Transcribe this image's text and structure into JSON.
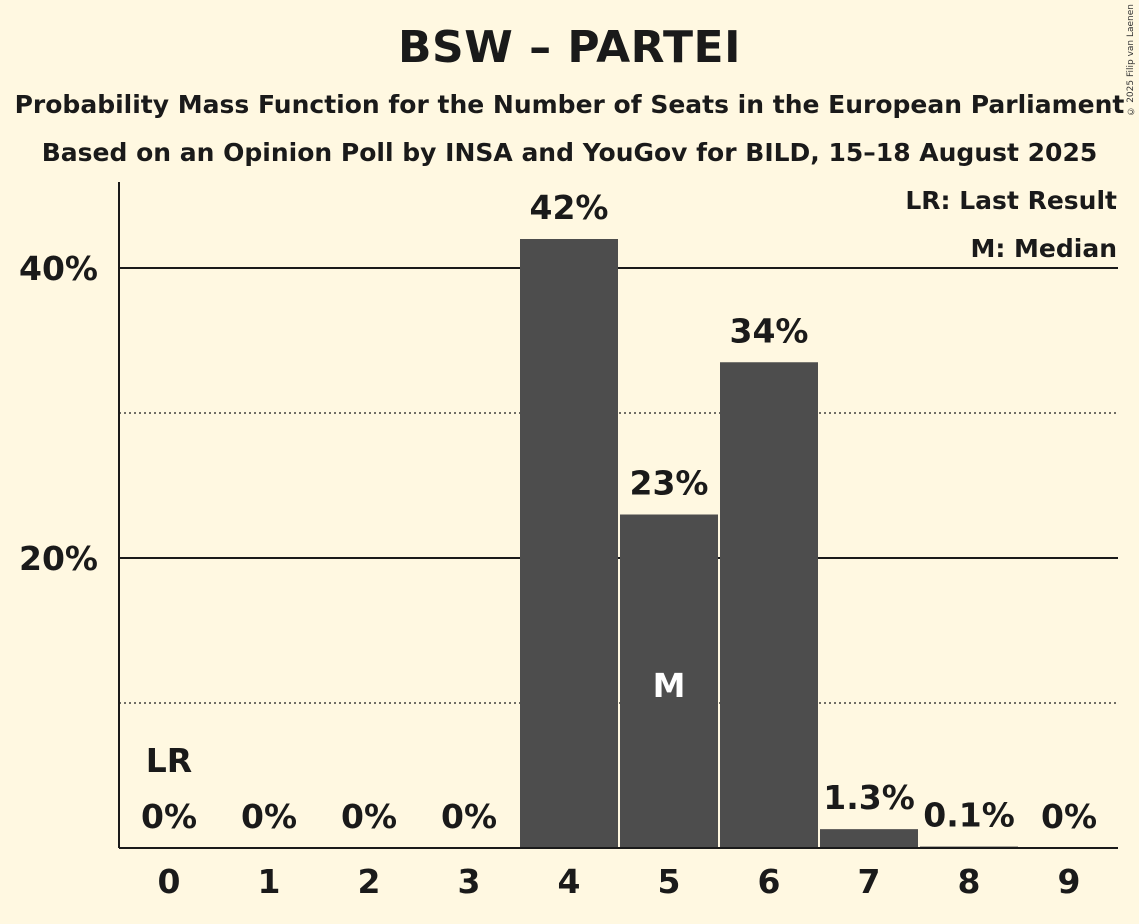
{
  "header": {
    "title": "BSW – PARTEI",
    "subtitle_line1": "Probability Mass Function for the Number of Seats in the European Parliament",
    "subtitle_line2": "Based on an Opinion Poll by INSA and YouGov for BILD, 15–18 August 2025",
    "copyright": "© 2025 Filip van Laenen"
  },
  "legend": {
    "last_result": "LR: Last Result",
    "median": "M: Median"
  },
  "colors": {
    "background": "#fff8e1",
    "bar": "#4d4d4d",
    "text": "#1a1a1a"
  },
  "chart_data": {
    "type": "bar",
    "title": "BSW – PARTEI",
    "categories": [
      "0",
      "1",
      "2",
      "3",
      "4",
      "5",
      "6",
      "7",
      "8",
      "9"
    ],
    "values": [
      0,
      0,
      0,
      0,
      42,
      23,
      33.5,
      1.3,
      0.1,
      0
    ],
    "data_labels": [
      "0%",
      "0%",
      "0%",
      "0%",
      "42%",
      "23%",
      "34%",
      "1.3%",
      "0.1%",
      "0%"
    ],
    "ylim": [
      0,
      46
    ],
    "yticks": [
      20,
      40
    ],
    "ytick_labels": [
      "20%",
      "40%"
    ],
    "minor_gridlines": [
      10,
      30
    ],
    "last_result_index": 0,
    "last_result_marker": "LR",
    "median_index": 5,
    "median_marker": "M"
  }
}
